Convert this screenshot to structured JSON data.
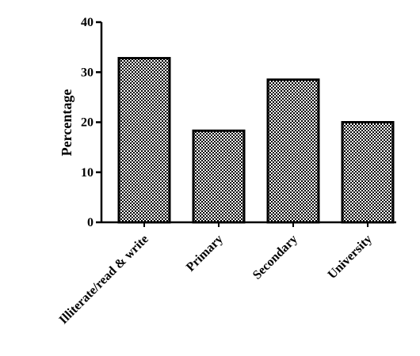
{
  "chart_data": {
    "type": "bar",
    "ylabel": "Percentage",
    "categories": [
      "Illiterate/read & write",
      "Primary",
      "Secondary",
      "University"
    ],
    "values": [
      32.8,
      18.3,
      28.5,
      20.0
    ],
    "color": "#000000",
    "ylim": [
      0,
      40
    ],
    "yticks": [
      0,
      10,
      20,
      30,
      40
    ],
    "grid": false
  }
}
